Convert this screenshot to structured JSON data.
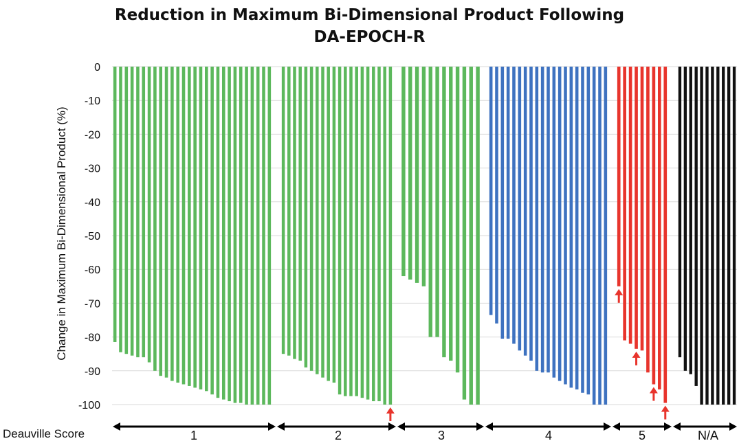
{
  "chart_data": {
    "type": "bar",
    "title_line1": "Reduction in Maximum Bi-Dimensional Product Following",
    "title_line2": "DA-EPOCH-R",
    "ylabel": "Change in Maximum Bi-Dimensional Product (%)",
    "xlabel": "Deauville Score",
    "ylim": [
      -100,
      0
    ],
    "yticks": [
      0,
      -10,
      -20,
      -30,
      -40,
      -50,
      -60,
      -70,
      -80,
      -90,
      -100
    ],
    "grid": true,
    "groups": [
      {
        "label": "1",
        "color": "#5cb85c",
        "values": [
          -81.5,
          -84.5,
          -85,
          -85.5,
          -86,
          -86,
          -87.5,
          -90,
          -91.5,
          -92,
          -93,
          -93.5,
          -94,
          -94.5,
          -95,
          -95.5,
          -96,
          -97,
          -98,
          -98.5,
          -99,
          -99.5,
          -99.5,
          -100,
          -100,
          -100,
          -100,
          -100
        ]
      },
      {
        "label": "2",
        "color": "#5cb85c",
        "values": [
          -85,
          -85.5,
          -86.5,
          -87,
          -89,
          -90,
          -91,
          -92,
          -93,
          -93.5,
          -97,
          -97.5,
          -97.5,
          -97.5,
          -98,
          -98.5,
          -99,
          -99,
          -100,
          -100
        ],
        "arrows": [
          19
        ]
      },
      {
        "label": "3",
        "color": "#5cb85c",
        "values": [
          -62,
          -63,
          -64,
          -65,
          -80,
          -80,
          -86,
          -87,
          -90.5,
          -98.5,
          -100,
          -100
        ]
      },
      {
        "label": "4",
        "color": "#3e72c0",
        "values": [
          -73.5,
          -76,
          -80.5,
          -80.5,
          -82,
          -84,
          -85.5,
          -87,
          -90,
          -90.5,
          -90.5,
          -92,
          -93,
          -94,
          -95,
          -95.5,
          -96.5,
          -97,
          -100,
          -100,
          -100
        ]
      },
      {
        "label": "5",
        "color": "#e8342c",
        "values": [
          -65,
          -81,
          -82,
          -83.5,
          -84,
          -90.5,
          -94,
          -95.5,
          -99.5
        ],
        "arrows": [
          0,
          3,
          6,
          8
        ]
      },
      {
        "label": "N/A",
        "color": "#111111",
        "values": [
          -86,
          -90,
          -91,
          -94.5,
          -100,
          -100,
          -100,
          -100,
          -100,
          -100,
          -100
        ]
      }
    ],
    "arrow_color": "#e8342c"
  }
}
